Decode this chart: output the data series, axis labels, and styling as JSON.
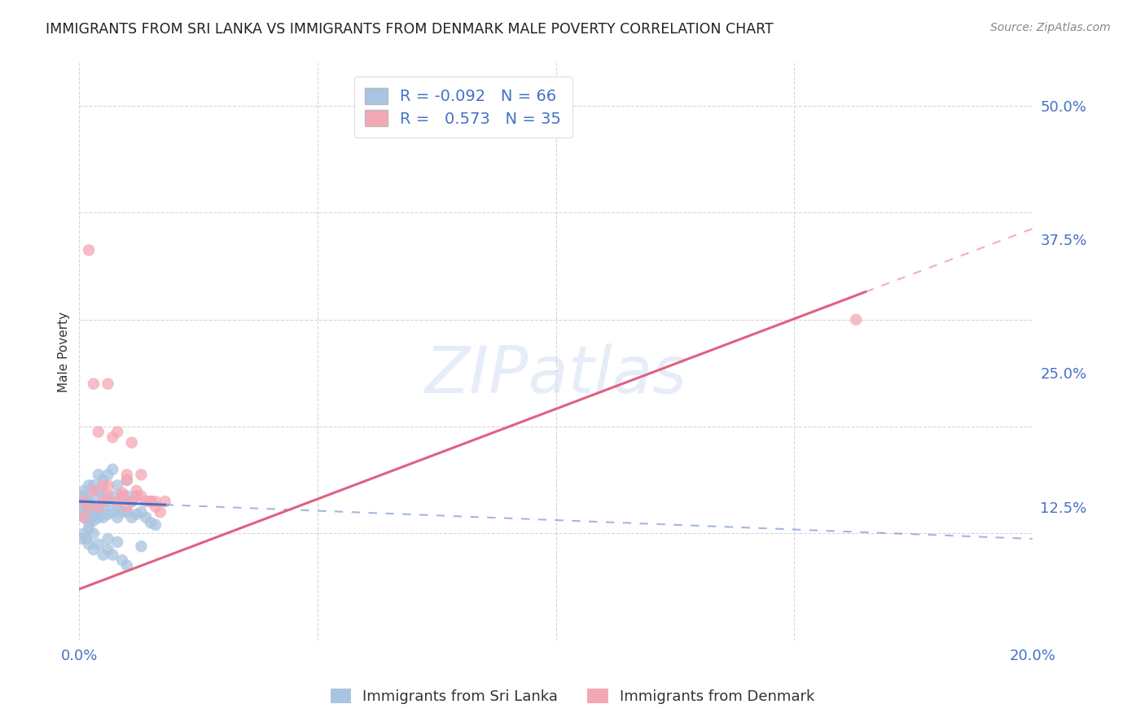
{
  "title": "IMMIGRANTS FROM SRI LANKA VS IMMIGRANTS FROM DENMARK MALE POVERTY CORRELATION CHART",
  "source": "Source: ZipAtlas.com",
  "ylabel": "Male Poverty",
  "xlim": [
    0.0,
    0.2
  ],
  "ylim": [
    0.0,
    0.54
  ],
  "yticks": [
    0.0,
    0.125,
    0.25,
    0.375,
    0.5
  ],
  "ytick_labels": [
    "",
    "12.5%",
    "25.0%",
    "37.5%",
    "50.0%"
  ],
  "xticks": [
    0.0,
    0.05,
    0.1,
    0.15,
    0.2
  ],
  "xtick_labels": [
    "0.0%",
    "",
    "",
    "",
    "20.0%"
  ],
  "sri_lanka_color": "#a8c4e0",
  "denmark_color": "#f4a7b5",
  "sri_lanka_line_color": "#4472c4",
  "denmark_line_color": "#e06080",
  "sri_lanka_R": -0.092,
  "sri_lanka_N": 66,
  "denmark_R": 0.573,
  "denmark_N": 35,
  "watermark": "ZIPatlas",
  "background_color": "#ffffff",
  "legend_label_sri": "Immigrants from Sri Lanka",
  "legend_label_den": "Immigrants from Denmark",
  "sri_line_x0": 0.0,
  "sri_line_y0": 0.13,
  "sri_line_x1": 0.2,
  "sri_line_y1": 0.095,
  "sri_line_solid_x1": 0.018,
  "den_line_x0": 0.0,
  "den_line_y0": 0.048,
  "den_line_x1": 0.2,
  "den_line_y1": 0.385,
  "den_line_solid_x1": 0.165,
  "sri_lanka_pts_x": [
    0.0005,
    0.0008,
    0.001,
    0.001,
    0.001,
    0.001,
    0.0015,
    0.0015,
    0.002,
    0.002,
    0.002,
    0.002,
    0.0025,
    0.0025,
    0.003,
    0.003,
    0.003,
    0.003,
    0.003,
    0.0035,
    0.004,
    0.004,
    0.004,
    0.004,
    0.005,
    0.005,
    0.005,
    0.005,
    0.006,
    0.006,
    0.006,
    0.007,
    0.007,
    0.007,
    0.008,
    0.008,
    0.008,
    0.009,
    0.009,
    0.01,
    0.01,
    0.01,
    0.011,
    0.011,
    0.012,
    0.012,
    0.013,
    0.014,
    0.015,
    0.016,
    0.0005,
    0.001,
    0.0015,
    0.002,
    0.002,
    0.003,
    0.003,
    0.004,
    0.005,
    0.006,
    0.006,
    0.007,
    0.008,
    0.009,
    0.01,
    0.013
  ],
  "sri_lanka_pts_y": [
    0.125,
    0.135,
    0.115,
    0.12,
    0.13,
    0.14,
    0.118,
    0.128,
    0.11,
    0.12,
    0.13,
    0.145,
    0.115,
    0.125,
    0.112,
    0.118,
    0.125,
    0.135,
    0.145,
    0.12,
    0.115,
    0.125,
    0.14,
    0.155,
    0.115,
    0.125,
    0.135,
    0.15,
    0.118,
    0.13,
    0.155,
    0.12,
    0.135,
    0.16,
    0.115,
    0.125,
    0.145,
    0.12,
    0.135,
    0.12,
    0.135,
    0.15,
    0.115,
    0.13,
    0.118,
    0.135,
    0.12,
    0.115,
    0.11,
    0.108,
    0.095,
    0.1,
    0.095,
    0.09,
    0.105,
    0.085,
    0.1,
    0.09,
    0.08,
    0.085,
    0.095,
    0.08,
    0.092,
    0.075,
    0.07,
    0.088
  ],
  "denmark_pts_x": [
    0.001,
    0.001,
    0.002,
    0.003,
    0.004,
    0.005,
    0.005,
    0.006,
    0.007,
    0.008,
    0.009,
    0.01,
    0.01,
    0.011,
    0.012,
    0.013,
    0.015,
    0.016,
    0.017,
    0.018,
    0.003,
    0.004,
    0.006,
    0.008,
    0.01,
    0.012,
    0.013,
    0.015,
    0.002,
    0.006,
    0.009,
    0.011,
    0.014,
    0.016,
    0.163
  ],
  "denmark_pts_y": [
    0.13,
    0.115,
    0.125,
    0.14,
    0.125,
    0.13,
    0.145,
    0.135,
    0.19,
    0.13,
    0.138,
    0.125,
    0.15,
    0.13,
    0.14,
    0.155,
    0.13,
    0.13,
    0.12,
    0.13,
    0.24,
    0.195,
    0.145,
    0.195,
    0.155,
    0.135,
    0.135,
    0.13,
    0.365,
    0.24,
    0.135,
    0.185,
    0.13,
    0.125,
    0.3
  ]
}
